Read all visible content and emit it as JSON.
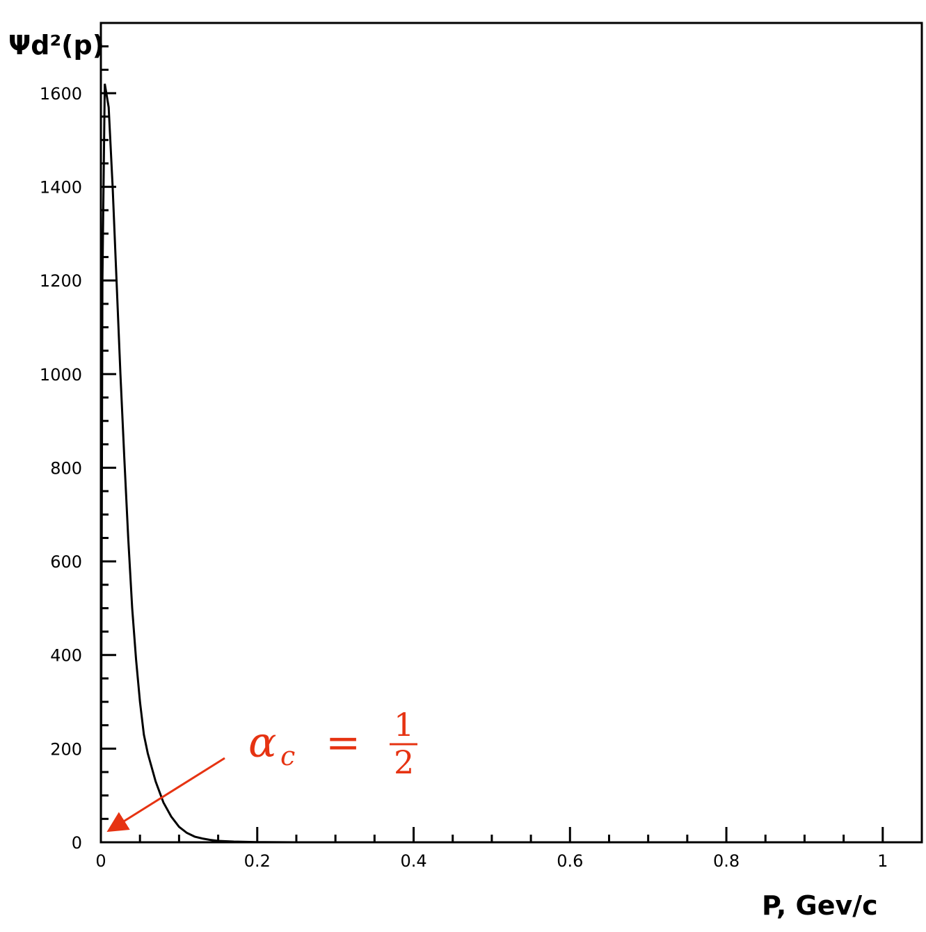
{
  "chart_data": {
    "type": "line",
    "title": "",
    "ylabel": "Ψd²(p)",
    "xlabel": "P, Gev/c",
    "xlim": [
      0,
      1.05
    ],
    "ylim": [
      0,
      1750
    ],
    "x_ticks": [
      {
        "value": 0,
        "label": "0"
      },
      {
        "value": 0.2,
        "label": "0.2"
      },
      {
        "value": 0.4,
        "label": "0.4"
      },
      {
        "value": 0.6,
        "label": "0.6"
      },
      {
        "value": 0.8,
        "label": "0.8"
      },
      {
        "value": 1,
        "label": "1"
      }
    ],
    "y_ticks": [
      {
        "value": 0,
        "label": "0"
      },
      {
        "value": 200,
        "label": "200"
      },
      {
        "value": 400,
        "label": "400"
      },
      {
        "value": 600,
        "label": "600"
      },
      {
        "value": 800,
        "label": "800"
      },
      {
        "value": 1000,
        "label": "1000"
      },
      {
        "value": 1200,
        "label": "1200"
      },
      {
        "value": 1400,
        "label": "1400"
      },
      {
        "value": 1600,
        "label": "1600"
      }
    ],
    "grid": false,
    "series": [
      {
        "color": "#000000",
        "x": [
          0.0,
          0.002,
          0.005,
          0.01,
          0.015,
          0.02,
          0.025,
          0.03,
          0.035,
          0.04,
          0.045,
          0.05,
          0.055,
          0.06,
          0.07,
          0.08,
          0.09,
          0.1,
          0.11,
          0.12,
          0.13,
          0.14,
          0.15,
          0.17,
          0.2,
          0.25,
          0.3,
          0.4,
          0.5,
          0.6,
          0.7,
          0.8,
          0.9,
          1.0,
          1.05
        ],
        "y": [
          0,
          1200,
          1620,
          1570,
          1400,
          1200,
          1000,
          820,
          650,
          500,
          390,
          300,
          230,
          190,
          130,
          85,
          55,
          33,
          20,
          12,
          8,
          5,
          3,
          1.5,
          0.5,
          0,
          0,
          0,
          0,
          0,
          0,
          0,
          0,
          0,
          0
        ]
      }
    ],
    "annotation": {
      "lhs": "αc",
      "alpha": "α",
      "subscript": "c",
      "equals": "=",
      "numerator": "1",
      "denominator": "2",
      "color": "#e63312",
      "target": {
        "x": 0.012,
        "y": 0
      }
    }
  }
}
